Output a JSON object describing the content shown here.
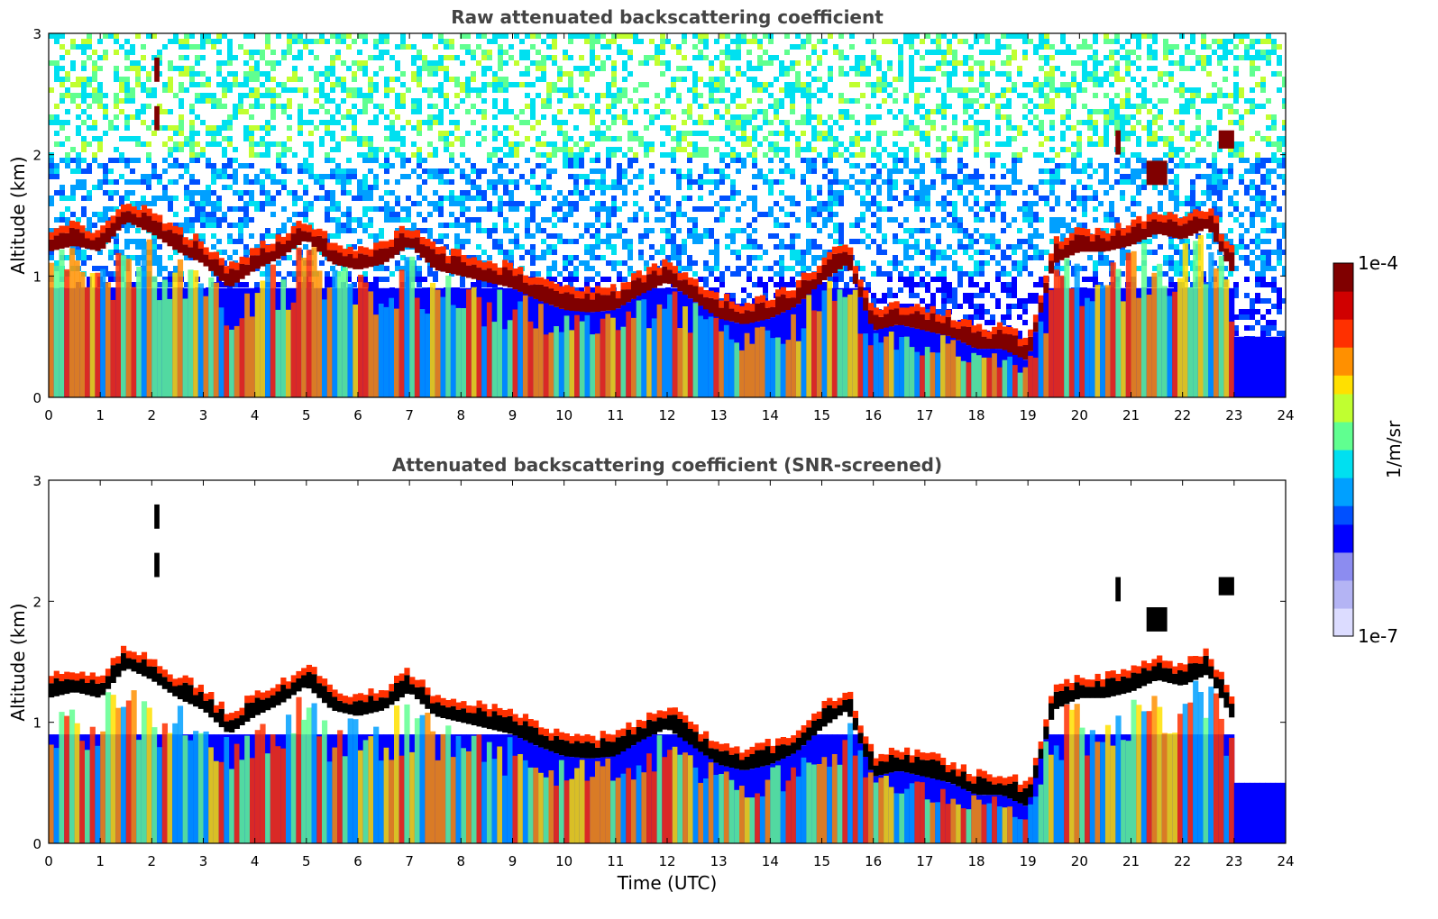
{
  "chart_data": [
    {
      "type": "heatmap",
      "title": "Raw attenuated backscattering coefficient",
      "xlabel": "",
      "ylabel": "Altitude (km)",
      "xlim": [
        0,
        24
      ],
      "ylim": [
        0,
        3
      ],
      "x_ticks": [
        "0",
        "1",
        "2",
        "3",
        "4",
        "5",
        "6",
        "7",
        "8",
        "9",
        "10",
        "11",
        "12",
        "13",
        "14",
        "15",
        "16",
        "17",
        "18",
        "19",
        "20",
        "21",
        "22",
        "23",
        "24"
      ],
      "y_ticks": [
        "0",
        "1",
        "2",
        "3"
      ],
      "screened": false,
      "cloud_base": [
        [
          0,
          1.2
        ],
        [
          0.5,
          1.25
        ],
        [
          1,
          1.2
        ],
        [
          1.5,
          1.45
        ],
        [
          2,
          1.35
        ],
        [
          2.5,
          1.2
        ],
        [
          3,
          1.1
        ],
        [
          3.5,
          0.9
        ],
        [
          4,
          1.05
        ],
        [
          4.5,
          1.15
        ],
        [
          5,
          1.3
        ],
        [
          5.5,
          1.1
        ],
        [
          6,
          1.05
        ],
        [
          6.5,
          1.1
        ],
        [
          7,
          1.25
        ],
        [
          7.5,
          1.05
        ],
        [
          8,
          1.0
        ],
        [
          8.5,
          0.95
        ],
        [
          9,
          0.9
        ],
        [
          9.5,
          0.8
        ],
        [
          10,
          0.72
        ],
        [
          10.5,
          0.7
        ],
        [
          11,
          0.72
        ],
        [
          11.5,
          0.85
        ],
        [
          12,
          0.95
        ],
        [
          12.5,
          0.8
        ],
        [
          13,
          0.65
        ],
        [
          13.5,
          0.6
        ],
        [
          14,
          0.65
        ],
        [
          14.5,
          0.75
        ],
        [
          15,
          0.95
        ],
        [
          15.5,
          1.1
        ],
        [
          16,
          0.55
        ],
        [
          16.5,
          0.6
        ],
        [
          17,
          0.55
        ],
        [
          17.5,
          0.5
        ],
        [
          18,
          0.4
        ],
        [
          18.5,
          0.4
        ],
        [
          19,
          0.3
        ],
        [
          19.5,
          1.1
        ],
        [
          20,
          1.2
        ],
        [
          20.5,
          1.2
        ],
        [
          21,
          1.25
        ],
        [
          21.5,
          1.35
        ],
        [
          22,
          1.3
        ],
        [
          22.5,
          1.4
        ],
        [
          23,
          1.0
        ]
      ],
      "clouds": [
        {
          "x": [
            2.05,
            2.15
          ],
          "y": [
            2.6,
            2.8
          ]
        },
        {
          "x": [
            2.05,
            2.15
          ],
          "y": [
            2.2,
            2.4
          ]
        },
        {
          "x": [
            20.7,
            20.8
          ],
          "y": [
            2.0,
            2.2
          ]
        },
        {
          "x": [
            21.3,
            21.7
          ],
          "y": [
            1.75,
            1.95
          ]
        },
        {
          "x": [
            22.7,
            23.0
          ],
          "y": [
            2.05,
            2.2
          ]
        }
      ]
    },
    {
      "type": "heatmap",
      "title": "Attenuated backscattering coefficient (SNR-screened)",
      "xlabel": "Time (UTC)",
      "ylabel": "Altitude (km)",
      "xlim": [
        0,
        24
      ],
      "ylim": [
        0,
        3
      ],
      "x_ticks": [
        "0",
        "1",
        "2",
        "3",
        "4",
        "5",
        "6",
        "7",
        "8",
        "9",
        "10",
        "11",
        "12",
        "13",
        "14",
        "15",
        "16",
        "17",
        "18",
        "19",
        "20",
        "21",
        "22",
        "23",
        "24"
      ],
      "y_ticks": [
        "0",
        "1",
        "2",
        "3"
      ],
      "screened": true,
      "cloud_base": [
        [
          0,
          1.2
        ],
        [
          0.5,
          1.25
        ],
        [
          1,
          1.2
        ],
        [
          1.5,
          1.45
        ],
        [
          2,
          1.35
        ],
        [
          2.5,
          1.2
        ],
        [
          3,
          1.1
        ],
        [
          3.5,
          0.9
        ],
        [
          4,
          1.05
        ],
        [
          4.5,
          1.15
        ],
        [
          5,
          1.3
        ],
        [
          5.5,
          1.1
        ],
        [
          6,
          1.05
        ],
        [
          6.5,
          1.1
        ],
        [
          7,
          1.25
        ],
        [
          7.5,
          1.05
        ],
        [
          8,
          1.0
        ],
        [
          8.5,
          0.95
        ],
        [
          9,
          0.9
        ],
        [
          9.5,
          0.8
        ],
        [
          10,
          0.72
        ],
        [
          10.5,
          0.7
        ],
        [
          11,
          0.72
        ],
        [
          11.5,
          0.85
        ],
        [
          12,
          0.95
        ],
        [
          12.5,
          0.8
        ],
        [
          13,
          0.65
        ],
        [
          13.5,
          0.6
        ],
        [
          14,
          0.65
        ],
        [
          14.5,
          0.75
        ],
        [
          15,
          0.95
        ],
        [
          15.5,
          1.1
        ],
        [
          16,
          0.55
        ],
        [
          16.5,
          0.6
        ],
        [
          17,
          0.55
        ],
        [
          17.5,
          0.5
        ],
        [
          18,
          0.4
        ],
        [
          18.5,
          0.4
        ],
        [
          19,
          0.3
        ],
        [
          19.5,
          1.1
        ],
        [
          20,
          1.2
        ],
        [
          20.5,
          1.2
        ],
        [
          21,
          1.25
        ],
        [
          21.5,
          1.35
        ],
        [
          22,
          1.3
        ],
        [
          22.5,
          1.4
        ],
        [
          23,
          1.0
        ]
      ],
      "clouds": [
        {
          "x": [
            2.05,
            2.15
          ],
          "y": [
            2.6,
            2.8
          ]
        },
        {
          "x": [
            2.05,
            2.15
          ],
          "y": [
            2.2,
            2.4
          ]
        },
        {
          "x": [
            20.7,
            20.8
          ],
          "y": [
            2.0,
            2.2
          ]
        },
        {
          "x": [
            21.3,
            21.7
          ],
          "y": [
            1.75,
            1.95
          ]
        },
        {
          "x": [
            22.7,
            23.0
          ],
          "y": [
            2.05,
            2.2
          ]
        }
      ]
    }
  ],
  "colorbar": {
    "label": "1/m/sr",
    "max_label": "1e-4",
    "min_label": "1e-7",
    "colormap": "jet",
    "colors": [
      "#dcdcff",
      "#b4b4f4",
      "#8c8cf0",
      "#0000ff",
      "#0050ff",
      "#00a0ff",
      "#00e0f0",
      "#60ff90",
      "#c0ff30",
      "#ffe000",
      "#ff9000",
      "#ff3000",
      "#d00000",
      "#800000"
    ]
  }
}
